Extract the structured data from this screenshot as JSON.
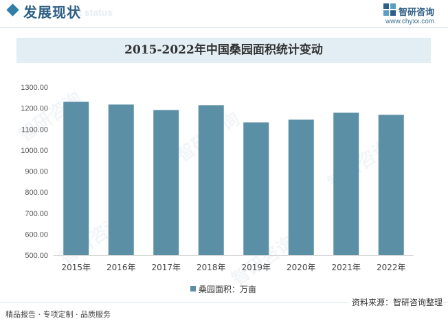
{
  "header": {
    "section_title": "发展现状",
    "section_subtitle": "ent status",
    "brand_name": "智研咨询",
    "brand_url": "www.chyxx.com",
    "accent": "#2f7fa8"
  },
  "watermark": {
    "text": "智研咨询"
  },
  "chart_data": {
    "type": "bar",
    "title": "2015-2022年中国桑园面积统计变动",
    "categories": [
      "2015年",
      "2016年",
      "2017年",
      "2018年",
      "2019年",
      "2020年",
      "2021年",
      "2022年"
    ],
    "series": [
      {
        "name": "桑园面积：万亩",
        "values": [
          1230,
          1217,
          1191,
          1214,
          1132,
          1145,
          1178,
          1168
        ],
        "color": "#5b8fa6"
      }
    ],
    "ylim": [
      500,
      1300
    ],
    "yticks": [
      "500.00",
      "600.00",
      "700.00",
      "800.00",
      "900.00",
      "1000.00",
      "1100.00",
      "1200.00",
      "1300.00"
    ],
    "grid": false,
    "legend": "bottom-center"
  },
  "footer": {
    "source": "资料来源：智研咨询整理",
    "services": "精品报告 · 专项定制 · 品质服务"
  }
}
